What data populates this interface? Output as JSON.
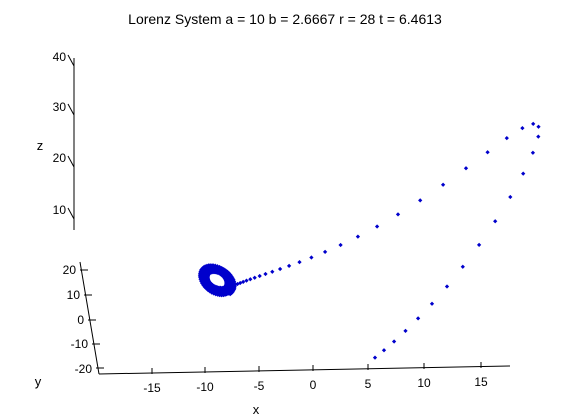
{
  "chart_data": {
    "type": "scatter",
    "title": "Lorenz System   a = 10   b = 2.6667   r = 28   t = 6.4613",
    "xlabel": "x",
    "ylabel": "y",
    "zlabel": "z",
    "xticks": [
      "-15",
      "-10",
      "-5",
      "0",
      "5",
      "10",
      "15"
    ],
    "yticks": [
      "20",
      "10",
      "0",
      "-10",
      "-20"
    ],
    "zticks": [
      "40",
      "30",
      "20",
      "10"
    ],
    "xlim": [
      -20,
      17
    ],
    "ylim": [
      -22,
      22
    ],
    "zlim": [
      5,
      42
    ],
    "grid": false,
    "marker_color": "#0000cc",
    "parameters": {
      "a": 10,
      "b": 2.6667,
      "r": 28,
      "t": 6.4613
    }
  }
}
